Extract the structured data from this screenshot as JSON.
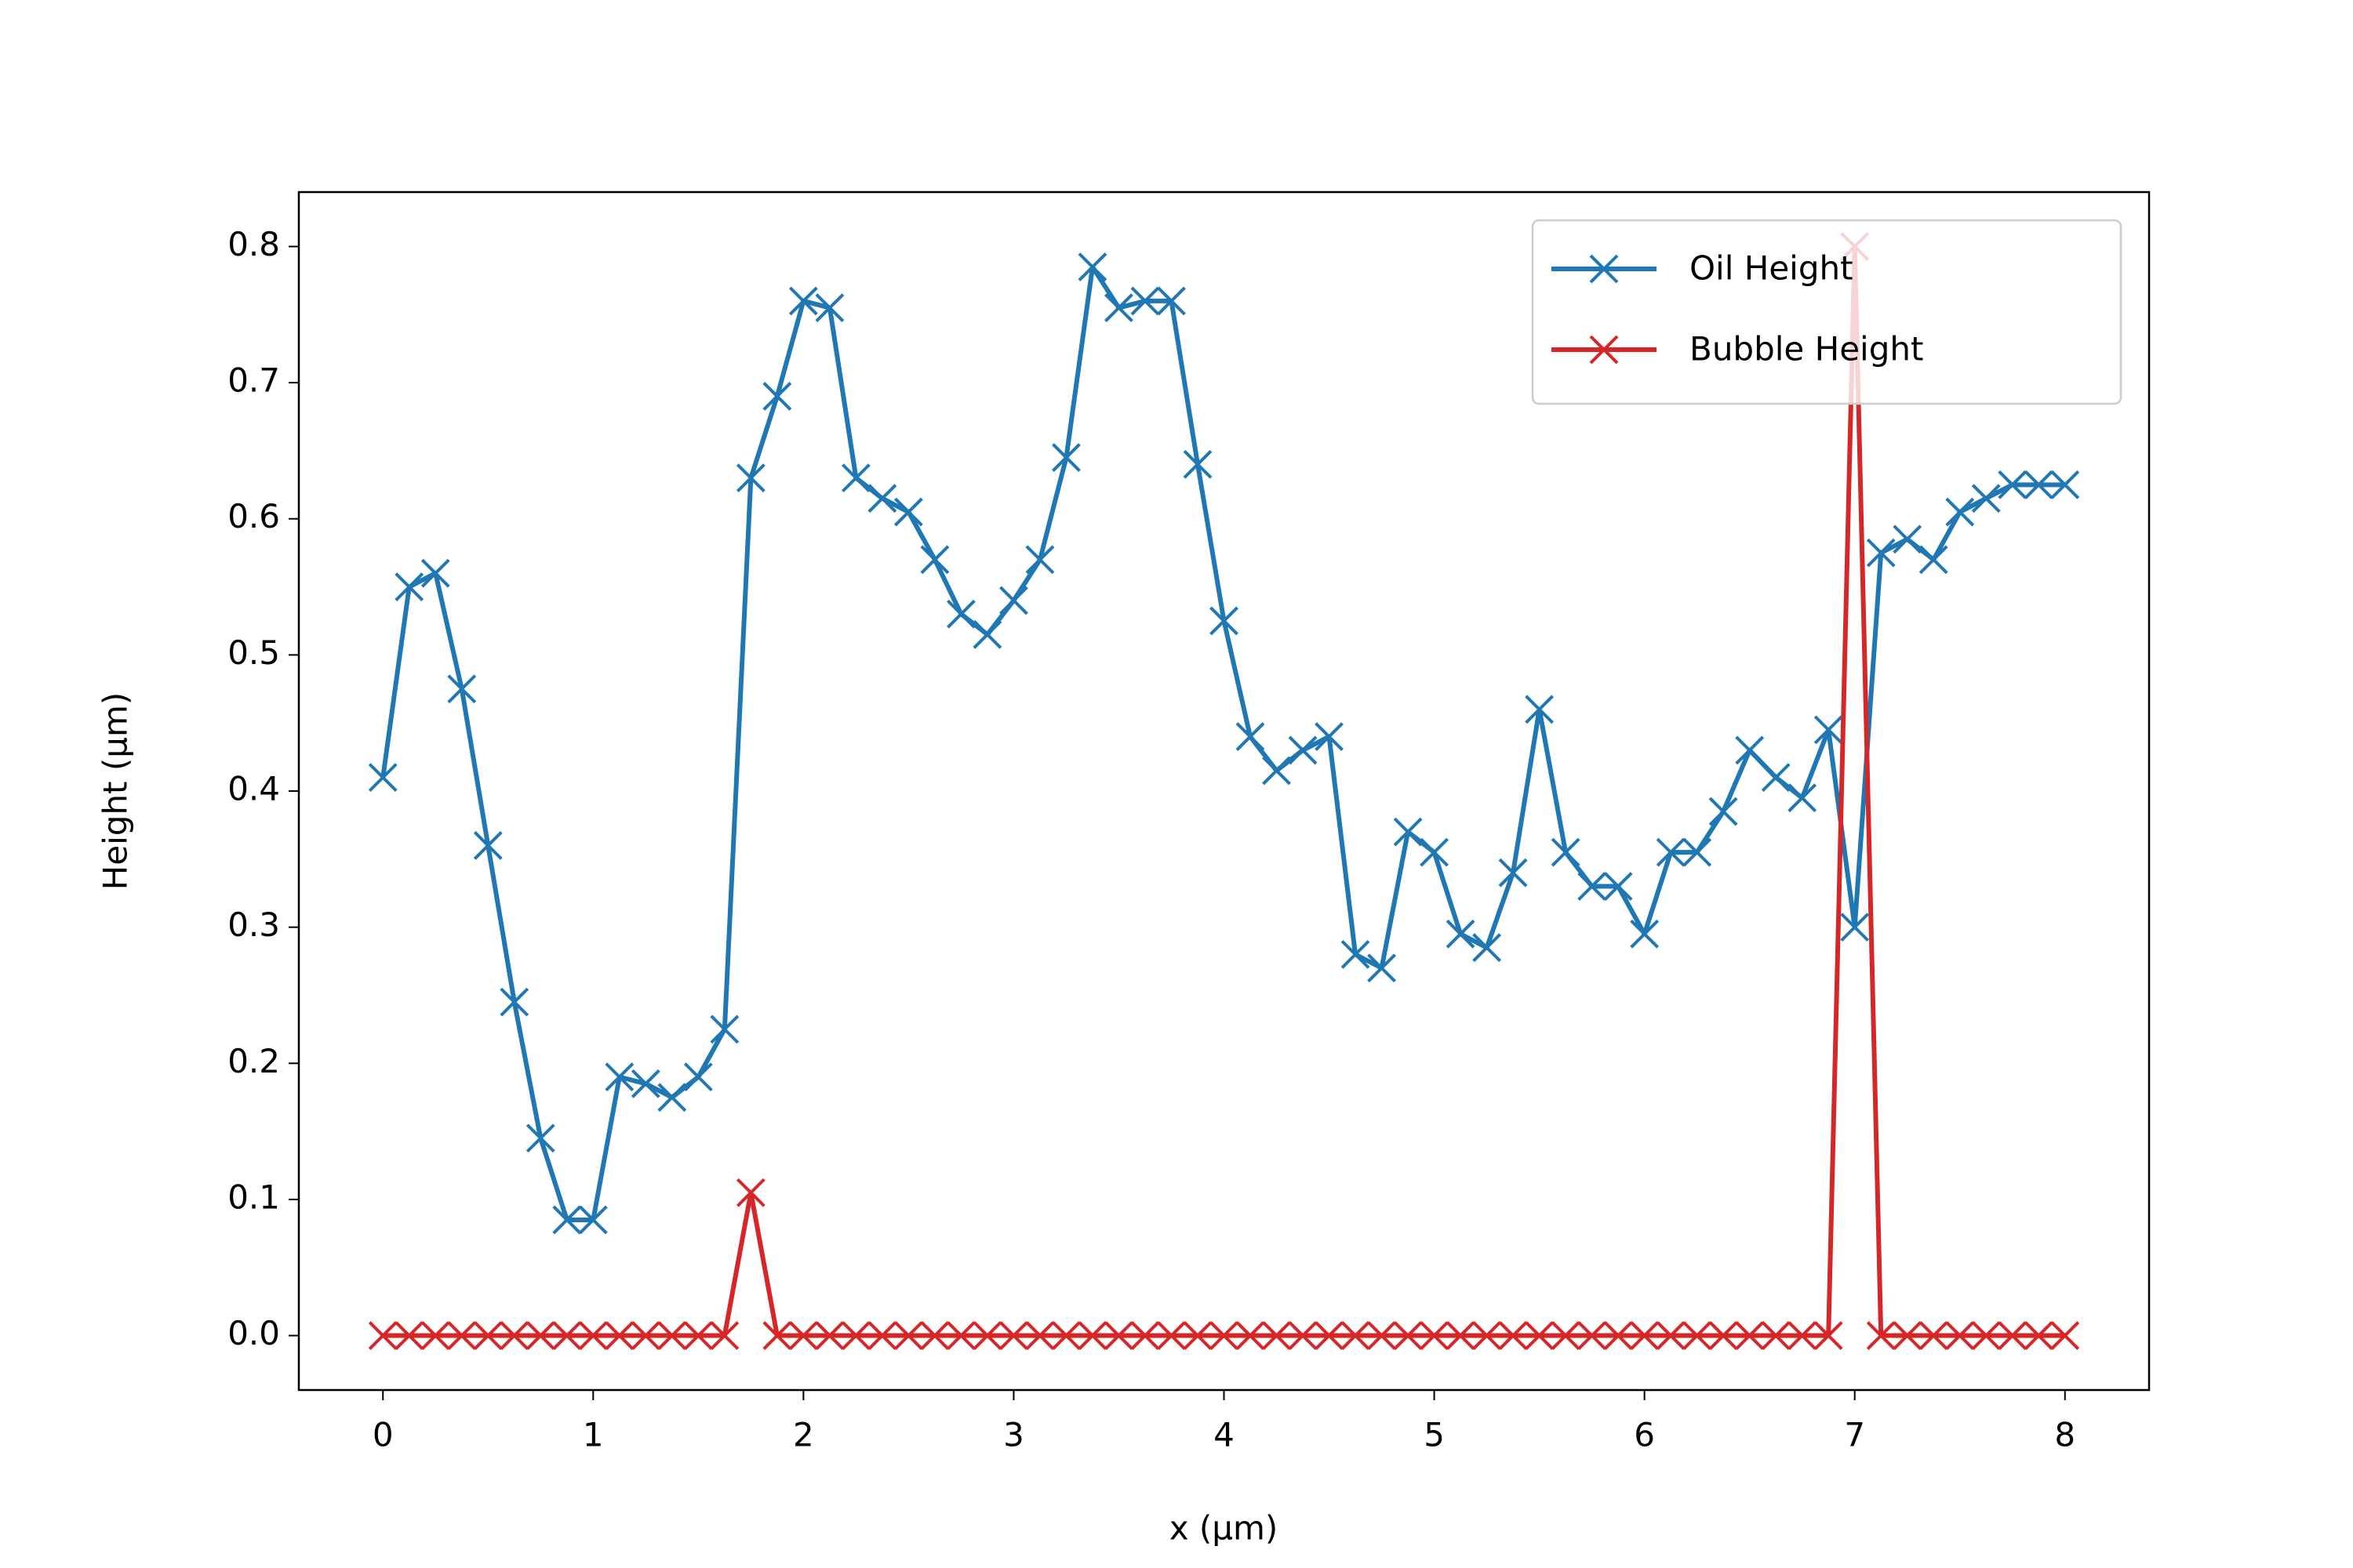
{
  "chart_data": {
    "type": "line",
    "xlabel": "x (μm)",
    "ylabel": "Height (μm)",
    "x": [
      0,
      0.125,
      0.25,
      0.375,
      0.5,
      0.625,
      0.75,
      0.875,
      1,
      1.125,
      1.25,
      1.375,
      1.5,
      1.625,
      1.75,
      1.875,
      2,
      2.125,
      2.25,
      2.375,
      2.5,
      2.625,
      2.75,
      2.875,
      3,
      3.125,
      3.25,
      3.375,
      3.5,
      3.625,
      3.75,
      3.875,
      4,
      4.125,
      4.25,
      4.375,
      4.5,
      4.625,
      4.75,
      4.875,
      5,
      5.125,
      5.25,
      5.375,
      5.5,
      5.625,
      5.75,
      5.875,
      6,
      6.125,
      6.25,
      6.375,
      6.5,
      6.625,
      6.75,
      6.875,
      7,
      7.125,
      7.25,
      7.375,
      7.5,
      7.625,
      7.75,
      7.875,
      8
    ],
    "series": [
      {
        "name": "Oil Height",
        "color": "#1f77b4",
        "values": [
          0.41,
          0.55,
          0.56,
          0.475,
          0.36,
          0.245,
          0.145,
          0.085,
          0.085,
          0.19,
          0.185,
          0.175,
          0.19,
          0.225,
          0.63,
          0.69,
          0.76,
          0.755,
          0.63,
          0.615,
          0.605,
          0.57,
          0.53,
          0.515,
          0.54,
          0.57,
          0.645,
          0.785,
          0.755,
          0.76,
          0.76,
          0.64,
          0.525,
          0.44,
          0.415,
          0.43,
          0.44,
          0.28,
          0.27,
          0.37,
          0.355,
          0.295,
          0.285,
          0.34,
          0.46,
          0.355,
          0.33,
          0.33,
          0.295,
          0.355,
          0.355,
          0.385,
          0.43,
          0.41,
          0.395,
          0.445,
          0.3,
          0.575,
          0.585,
          0.57,
          0.605,
          0.615,
          0.625,
          0.625,
          0.625
        ]
      },
      {
        "name": "Bubble Height",
        "color": "#d62728",
        "values": [
          0,
          0,
          0,
          0,
          0,
          0,
          0,
          0,
          0,
          0,
          0,
          0,
          0,
          0,
          0.105,
          0,
          0,
          0,
          0,
          0,
          0,
          0,
          0,
          0,
          0,
          0,
          0,
          0,
          0,
          0,
          0,
          0,
          0,
          0,
          0,
          0,
          0,
          0,
          0,
          0,
          0,
          0,
          0,
          0,
          0,
          0,
          0,
          0,
          0,
          0,
          0,
          0,
          0,
          0,
          0,
          0,
          0.8,
          0,
          0,
          0,
          0,
          0,
          0,
          0,
          0
        ]
      }
    ],
    "xlim": [
      -0.4,
      8.4
    ],
    "xticks": [
      0,
      1,
      2,
      3,
      4,
      5,
      6,
      7,
      8
    ],
    "ylim": [
      -0.04,
      0.84
    ],
    "yticks": [
      {
        "value": 0,
        "label": "0.0"
      },
      0.1,
      0.2,
      0.3,
      0.4,
      0.5,
      0.6,
      0.7,
      0.8
    ],
    "legend": "upper right",
    "grid": false,
    "marker": "x"
  }
}
